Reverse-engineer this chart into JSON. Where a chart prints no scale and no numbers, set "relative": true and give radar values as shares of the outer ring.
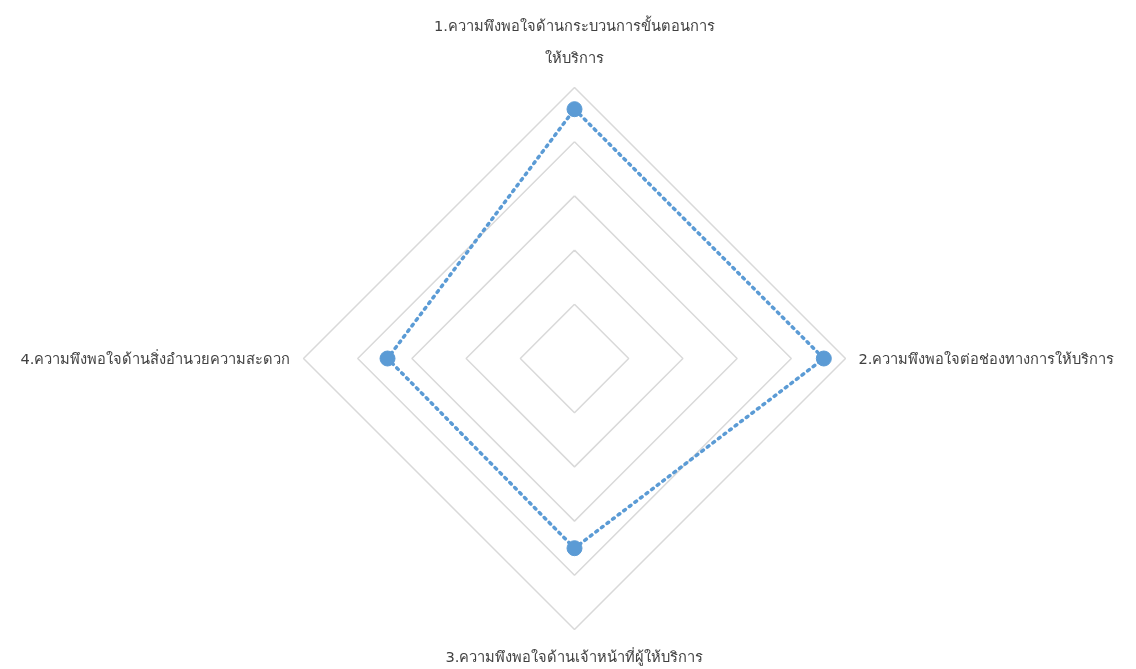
{
  "chart_data": {
    "type": "radar",
    "relative": true,
    "grid": true,
    "marker": "circle",
    "line_style": "dotted",
    "categories": [
      "1.ความพึงพอใจด้านกระบวนการขั้นตอนการ\nให้บริการ",
      "2.ความพึงพอใจต่อช่องทางการให้บริการ",
      "3.ความพึงพอใจด้านเจ้าหน้าที่ผู้ให้บริการ",
      "4.ความพึงพอใจด้านสิ่งอำนวยความสะดวก"
    ],
    "series": [
      {
        "color": "#5b9bd5",
        "values": [
          0.92,
          0.92,
          0.7,
          0.69
        ]
      }
    ]
  }
}
